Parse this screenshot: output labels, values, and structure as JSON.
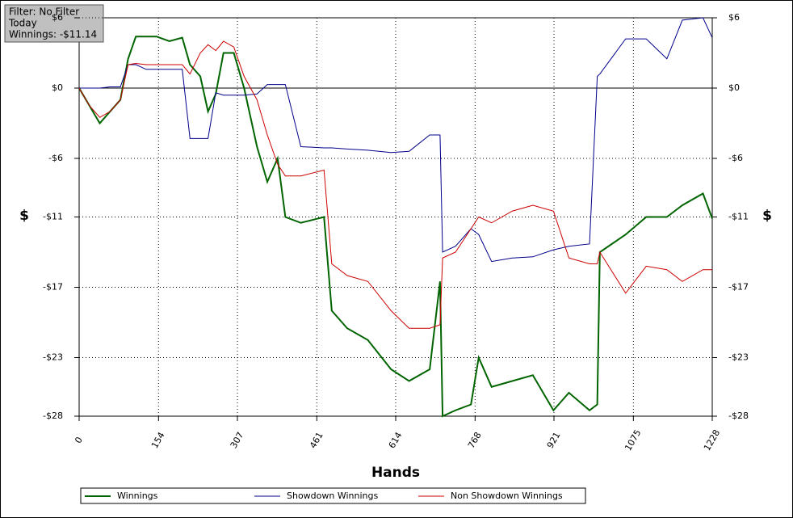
{
  "info": {
    "filter": "Filter: No Filter",
    "period": "Today",
    "winnings": "Winnings: -$11.14"
  },
  "chart_data": {
    "type": "line",
    "xlabel": "Hands",
    "ylabel": "$",
    "xlim": [
      0,
      1228
    ],
    "xticks": [
      0,
      154,
      307,
      461,
      614,
      768,
      921,
      1075,
      1228
    ],
    "ylim": [
      -28,
      6
    ],
    "yticks": [
      {
        "value": 6,
        "label": "$6"
      },
      {
        "value": 0,
        "label": "$0"
      },
      {
        "value": -6,
        "label": "-$6"
      },
      {
        "value": -11,
        "label": "-$11"
      },
      {
        "value": -17,
        "label": "-$17"
      },
      {
        "value": -23,
        "label": "-$23"
      },
      {
        "value": -28,
        "label": "-$28"
      }
    ],
    "grid": true,
    "x": [
      0,
      20,
      40,
      60,
      80,
      95,
      110,
      130,
      150,
      175,
      200,
      215,
      235,
      250,
      265,
      280,
      300,
      320,
      345,
      365,
      385,
      400,
      430,
      475,
      490,
      520,
      560,
      605,
      640,
      680,
      700,
      705,
      730,
      760,
      775,
      800,
      840,
      880,
      920,
      950,
      990,
      1005,
      1010,
      1060,
      1100,
      1140,
      1170,
      1210,
      1228
    ],
    "series": [
      {
        "name": "Winnings",
        "color": "#006400",
        "values": [
          0,
          -1.5,
          -3,
          -2,
          -1,
          2.5,
          4.4,
          4.4,
          4.4,
          4,
          4.3,
          2,
          1,
          -2,
          -0.5,
          3,
          3,
          0,
          -5,
          -8,
          -6,
          -11,
          -11.5,
          -11,
          -19,
          -20.5,
          -21.5,
          -24,
          -25,
          -24,
          -16.5,
          -28,
          -27.5,
          -27,
          -23,
          -25.5,
          -25,
          -24.5,
          -27.5,
          -26,
          -27.5,
          -27,
          -14,
          -12.5,
          -11,
          -11,
          -10,
          -9,
          -11.14
        ]
      },
      {
        "name": "Showdown Winnings",
        "color": "#00008b",
        "values": [
          0,
          0,
          0,
          0.1,
          0.1,
          2,
          2,
          1.6,
          1.6,
          1.6,
          1.6,
          -4.3,
          -4.3,
          -4.3,
          -0.4,
          -0.6,
          -0.6,
          -0.6,
          -0.5,
          0.3,
          0.3,
          0.3,
          -5,
          -5.1,
          -5.1,
          -5.2,
          -5.3,
          -5.5,
          -5.4,
          -4,
          -4,
          -14,
          -13.5,
          -12,
          -12.5,
          -14.8,
          -14.5,
          -14.4,
          -13.8,
          -13.5,
          -13.3,
          1,
          1.2,
          4.2,
          4.2,
          2.5,
          5.8,
          6,
          4.3
        ]
      },
      {
        "name": "Non Showdown Winnings",
        "color": "#cc0000",
        "values": [
          0,
          -1.5,
          -2.5,
          -2,
          -1,
          2,
          2.1,
          2,
          2,
          2,
          2,
          1.2,
          3,
          3.7,
          3.2,
          4,
          3.5,
          1,
          -1,
          -4,
          -6.5,
          -7.5,
          -7.5,
          -7,
          -15,
          -16,
          -16.5,
          -19,
          -20.5,
          -20.5,
          -20.2,
          -14.5,
          -14,
          -12,
          -11,
          -11.5,
          -10.5,
          -10,
          -10.5,
          -14.5,
          -15,
          -15,
          -14,
          -17.5,
          -15.2,
          -15.5,
          -16.5,
          -15.5,
          -15.5
        ]
      }
    ]
  }
}
